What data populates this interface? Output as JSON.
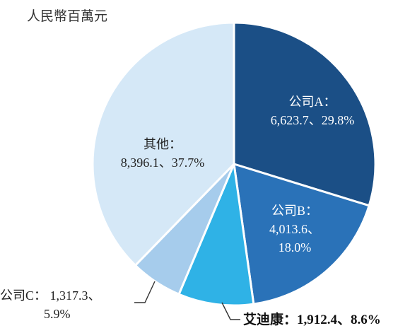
{
  "chart_data": {
    "type": "pie",
    "unit_label": "人民幣百萬元",
    "start": "12 o'clock, clockwise",
    "slices": [
      {
        "name": "公司A",
        "value": 6623.7,
        "percent": 29.8,
        "value_text": "6,623.7",
        "percent_text": "29.8%",
        "color": "#1b4f86"
      },
      {
        "name": "公司B",
        "value": 4013.6,
        "percent": 18.0,
        "value_text": "4,013.6",
        "percent_text": "18.0%",
        "color": "#2a72b8"
      },
      {
        "name": "艾迪康",
        "value": 1912.4,
        "percent": 8.6,
        "value_text": "1,912.4",
        "percent_text": "8.6%",
        "color": "#2fb2e6",
        "highlight": true
      },
      {
        "name": "公司C",
        "value": 1317.3,
        "percent": 5.9,
        "value_text": "1,317.3",
        "percent_text": "5.9%",
        "color": "#a6ccec"
      },
      {
        "name": "其他",
        "value": 8396.1,
        "percent": 37.7,
        "value_text": "8,396.1",
        "percent_text": "37.7%",
        "color": "#d5e8f7"
      }
    ]
  },
  "labels": {
    "a": {
      "line1": "公司A：",
      "line2": "6,623.7、29.8%"
    },
    "b": {
      "line1": "公司B：",
      "line2": "4,013.6、",
      "line3": "18.0%"
    },
    "adicon": {
      "line1": "艾迪康：1,912.4、8.6%"
    },
    "c": {
      "line1": "公司C： 1,317.3、",
      "line2": "5.9%"
    },
    "other": {
      "line1": "其他：",
      "line2": "8,396.1、37.7%"
    }
  }
}
